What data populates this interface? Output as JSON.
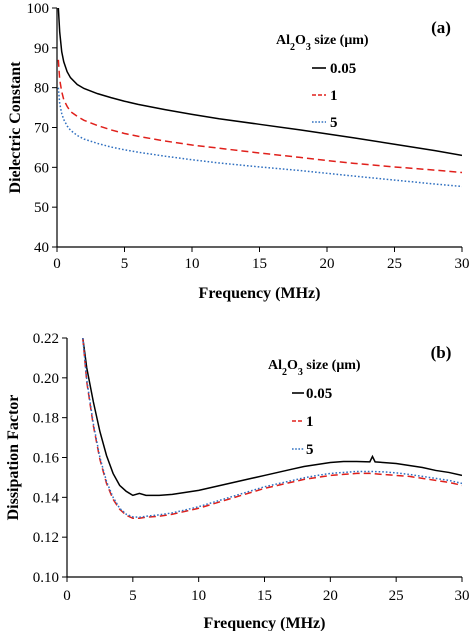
{
  "chart_data": [
    {
      "type": "line",
      "panel_label": "(a)",
      "xlabel": "Frequency (MHz)",
      "ylabel": "Dielectric Constant",
      "xlim": [
        0,
        30
      ],
      "ylim": [
        40,
        100
      ],
      "xticks": [
        0,
        5,
        10,
        15,
        20,
        25,
        30
      ],
      "yticks": [
        40,
        50,
        60,
        70,
        80,
        90,
        100
      ],
      "grid": false,
      "legend": {
        "title_prefix": "Al",
        "title_sub1": "2",
        "title_mid": "O",
        "title_sub2": "3",
        "title_suffix": " size (μm)",
        "placement": "top-right"
      },
      "series": [
        {
          "name": "0.05",
          "color": "#000000",
          "dash": "solid",
          "x": [
            0.1,
            0.2,
            0.35,
            0.5,
            0.75,
            1,
            1.5,
            2,
            3,
            4,
            5,
            6,
            8,
            10,
            12,
            15,
            18,
            20,
            22,
            25,
            28,
            30
          ],
          "y": [
            100,
            94,
            89,
            86.5,
            84,
            82.5,
            80.8,
            79.8,
            78.5,
            77.5,
            76.6,
            75.8,
            74.5,
            73.3,
            72.2,
            70.8,
            69.4,
            68.4,
            67.4,
            65.8,
            64.2,
            63
          ]
        },
        {
          "name": "1",
          "color": "#e0201b",
          "dash": "dashed",
          "x": [
            0.1,
            0.2,
            0.35,
            0.5,
            0.75,
            1,
            1.5,
            2,
            3,
            4,
            5,
            6,
            8,
            10,
            12,
            15,
            18,
            20,
            22,
            25,
            28,
            30
          ],
          "y": [
            87,
            82,
            79,
            77,
            75.3,
            74,
            72.8,
            71.8,
            70.5,
            69.4,
            68.5,
            67.8,
            66.6,
            65.6,
            64.8,
            63.6,
            62.5,
            61.7,
            61,
            60.1,
            59.3,
            58.7
          ]
        },
        {
          "name": "5",
          "color": "#3070c0",
          "dash": "dotted",
          "x": [
            0.1,
            0.2,
            0.35,
            0.5,
            0.75,
            1,
            1.5,
            2,
            3,
            4,
            5,
            6,
            8,
            10,
            12,
            15,
            18,
            20,
            22,
            25,
            28,
            30
          ],
          "y": [
            80,
            76,
            73.5,
            72,
            70.4,
            69.3,
            68,
            67.1,
            66,
            65.1,
            64.4,
            63.8,
            62.8,
            61.9,
            61.1,
            60.1,
            59.2,
            58.5,
            57.8,
            56.8,
            55.8,
            55.2
          ]
        }
      ]
    },
    {
      "type": "line",
      "panel_label": "(b)",
      "xlabel": "Frequency (MHz)",
      "ylabel": "Dissipation Factor",
      "xlim": [
        0,
        30
      ],
      "ylim": [
        0.1,
        0.22
      ],
      "xticks": [
        0,
        5,
        10,
        15,
        20,
        25,
        30
      ],
      "yticks": [
        0.1,
        0.12,
        0.14,
        0.16,
        0.18,
        0.2,
        0.22
      ],
      "ytick_decimals": 2,
      "grid": false,
      "legend": {
        "title_prefix": "Al",
        "title_sub1": "2",
        "title_mid": "O",
        "title_sub2": "3",
        "title_suffix": " size (μm)",
        "placement": "top-right"
      },
      "series": [
        {
          "name": "0.05",
          "color": "#000000",
          "dash": "solid",
          "x": [
            1.2,
            1.5,
            2,
            2.5,
            3,
            3.5,
            4,
            4.5,
            5,
            5.5,
            6,
            7,
            8,
            9,
            10,
            11,
            12,
            13,
            14,
            15,
            16,
            17,
            18,
            19,
            20,
            21,
            22,
            23,
            23.2,
            23.4,
            24,
            25,
            26,
            27,
            28,
            29,
            30
          ],
          "y": [
            0.22,
            0.205,
            0.188,
            0.173,
            0.161,
            0.152,
            0.146,
            0.143,
            0.141,
            0.142,
            0.141,
            0.141,
            0.1415,
            0.1425,
            0.1435,
            0.145,
            0.1465,
            0.148,
            0.1495,
            0.151,
            0.1525,
            0.154,
            0.1555,
            0.1565,
            0.1575,
            0.158,
            0.158,
            0.1578,
            0.1605,
            0.1578,
            0.1575,
            0.157,
            0.156,
            0.155,
            0.1535,
            0.1525,
            0.151
          ]
        },
        {
          "name": "1",
          "color": "#e0201b",
          "dash": "dashed",
          "x": [
            1.2,
            1.5,
            2,
            2.5,
            3,
            3.5,
            4,
            4.5,
            5,
            5.5,
            6,
            7,
            8,
            9,
            10,
            11,
            12,
            13,
            14,
            15,
            16,
            17,
            18,
            19,
            20,
            21,
            22,
            23,
            24,
            25,
            26,
            27,
            28,
            29,
            30
          ],
          "y": [
            0.22,
            0.198,
            0.176,
            0.159,
            0.147,
            0.139,
            0.134,
            0.131,
            0.1295,
            0.1295,
            0.13,
            0.1305,
            0.1315,
            0.133,
            0.1345,
            0.1365,
            0.1385,
            0.1405,
            0.1425,
            0.1445,
            0.146,
            0.1475,
            0.149,
            0.15,
            0.151,
            0.1515,
            0.152,
            0.152,
            0.1515,
            0.151,
            0.1505,
            0.1495,
            0.1485,
            0.1475,
            0.146
          ]
        },
        {
          "name": "5",
          "color": "#3070c0",
          "dash": "dotted",
          "x": [
            1.2,
            1.5,
            2,
            2.5,
            3,
            3.5,
            4,
            4.5,
            5,
            5.5,
            6,
            7,
            8,
            9,
            10,
            11,
            12,
            13,
            14,
            15,
            16,
            17,
            18,
            19,
            20,
            21,
            22,
            23,
            24,
            25,
            26,
            27,
            28,
            29,
            30
          ],
          "y": [
            0.22,
            0.199,
            0.177,
            0.16,
            0.148,
            0.14,
            0.1345,
            0.1315,
            0.1302,
            0.13,
            0.1305,
            0.1312,
            0.1322,
            0.1337,
            0.1353,
            0.1373,
            0.1393,
            0.1413,
            0.1433,
            0.1453,
            0.1468,
            0.1483,
            0.1498,
            0.151,
            0.152,
            0.1525,
            0.153,
            0.153,
            0.1528,
            0.1523,
            0.1515,
            0.1505,
            0.1495,
            0.1485,
            0.147
          ]
        }
      ]
    }
  ]
}
